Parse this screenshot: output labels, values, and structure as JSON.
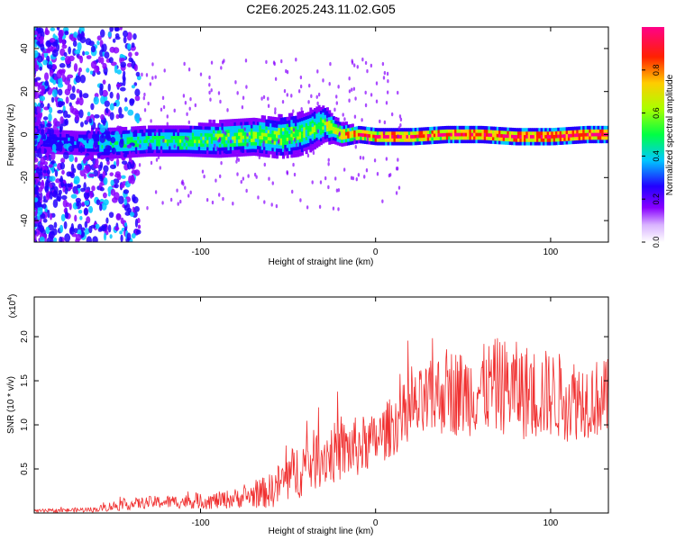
{
  "title": "C2E6.2025.243.11.02.G05",
  "chart_data": [
    {
      "type": "heatmap",
      "title": "C2E6.2025.243.11.02.G05",
      "xlabel": "Height of straight line (km)",
      "ylabel": "Frequency (Hz)",
      "xlim": [
        -195,
        133
      ],
      "ylim": [
        -50,
        50
      ],
      "xticks": [
        -100,
        0,
        100
      ],
      "xtick_labels": [
        "-100",
        "0",
        "100"
      ],
      "yticks": [
        -40,
        -20,
        0,
        20,
        40
      ],
      "ytick_labels": [
        "-40",
        "-20",
        "0",
        "20",
        "40"
      ],
      "ridge": {
        "x": [
          -195,
          -170,
          -150,
          -130,
          -110,
          -90,
          -70,
          -55,
          -45,
          -38,
          -30,
          -25,
          -20,
          -10,
          0,
          20,
          40,
          60,
          80,
          100,
          120,
          133
        ],
        "center": [
          -3,
          -4,
          -4,
          -3,
          -3,
          -2,
          -1,
          -1,
          0,
          2,
          5,
          3,
          0,
          0,
          -1,
          -1,
          0,
          0,
          -1,
          -1,
          0,
          0
        ],
        "halfwidth": [
          6,
          6,
          6,
          6,
          6,
          7,
          7,
          8,
          8,
          8,
          7,
          5,
          4,
          3,
          3,
          3,
          3,
          3,
          3,
          3,
          3,
          3
        ],
        "intensity": [
          0.2,
          0.25,
          0.4,
          0.4,
          0.45,
          0.45,
          0.5,
          0.5,
          0.5,
          0.45,
          0.5,
          0.6,
          0.7,
          0.8,
          0.85,
          0.9,
          0.85,
          0.9,
          0.9,
          0.95,
          0.95,
          0.9
        ]
      },
      "colorbar": {
        "label": "Normalized spectral amplitude",
        "range": [
          0,
          1
        ],
        "ticks": [
          0.0,
          0.2,
          0.4,
          0.6,
          0.8
        ],
        "tick_labels": [
          "0.0",
          "0.2",
          "0.4",
          "0.6",
          "0.8"
        ]
      }
    },
    {
      "type": "line",
      "xlabel": "Height of straight line (km)",
      "ylabel": "SNR (10 * v/v)",
      "exponent_label": "(x10",
      "exponent_power": "4",
      "xlim": [
        -195,
        133
      ],
      "ylim": [
        0,
        2.45
      ],
      "xticks": [
        -100,
        0,
        100
      ],
      "xtick_labels": [
        "-100",
        "0",
        "100"
      ],
      "yticks": [
        0.5,
        1.0,
        1.5,
        2.0
      ],
      "ytick_labels": [
        "0.5",
        "1.0",
        "1.5",
        "2.0"
      ],
      "color": "#f03030",
      "series": [
        {
          "name": "SNR",
          "x": [
            -195,
            -160,
            -150,
            -130,
            -110,
            -90,
            -75,
            -60,
            -50,
            -40,
            -30,
            -20,
            -10,
            0,
            10,
            20,
            30,
            40,
            50,
            60,
            70,
            80,
            90,
            100,
            110,
            120,
            133
          ],
          "base": [
            0.02,
            0.04,
            0.08,
            0.12,
            0.13,
            0.14,
            0.18,
            0.25,
            0.4,
            0.55,
            0.65,
            0.7,
            0.75,
            0.82,
            1.0,
            1.15,
            1.25,
            1.4,
            1.35,
            1.4,
            1.45,
            1.4,
            1.35,
            1.35,
            1.3,
            1.3,
            1.3
          ],
          "noise": [
            0.02,
            0.03,
            0.06,
            0.07,
            0.08,
            0.1,
            0.12,
            0.2,
            0.3,
            0.35,
            0.35,
            0.35,
            0.35,
            0.3,
            0.35,
            0.4,
            0.45,
            0.5,
            0.5,
            0.5,
            0.55,
            0.55,
            0.55,
            0.5,
            0.5,
            0.45,
            0.45
          ]
        }
      ]
    }
  ]
}
